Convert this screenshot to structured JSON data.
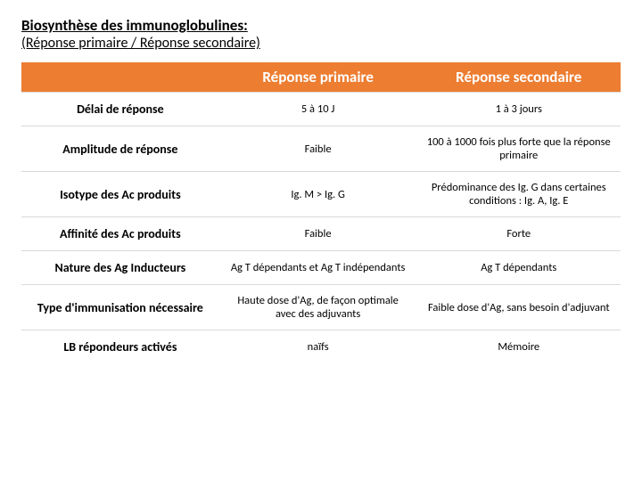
{
  "title": {
    "line1": "Biosynthèse des immunoglobulines:",
    "line2": "(Réponse primaire / Réponse secondaire)"
  },
  "table": {
    "header_bg": "#ed7d31",
    "header_fg": "#ffffff",
    "border_color": "#d9d9d9",
    "columns": [
      "",
      "Réponse primaire",
      "Réponse secondaire"
    ],
    "col_widths_pct": [
      33,
      33,
      34
    ],
    "header_fontsize": 17,
    "rowlabel_fontsize": 14,
    "cell_fontsize": 12.5,
    "rows": [
      {
        "label": "Délai de réponse",
        "primary": "5 à 10 J",
        "secondary": "1 à 3 jours"
      },
      {
        "label": "Amplitude de réponse",
        "primary": "Faible",
        "secondary": "100 à 1000 fois plus forte que la réponse primaire"
      },
      {
        "label": "Isotype des Ac produits",
        "primary": "Ig. M > Ig. G",
        "secondary": "Prédominance des Ig. G dans certaines conditions : Ig. A, Ig. E"
      },
      {
        "label": "Affinité des Ac produits",
        "primary": "Faible",
        "secondary": "Forte"
      },
      {
        "label": "Nature des Ag Inducteurs",
        "primary": "Ag T dépendants et Ag T indépendants",
        "secondary": "Ag T dépendants"
      },
      {
        "label": "Type d'immunisation nécessaire",
        "primary": "Haute dose d'Ag, de façon optimale avec des adjuvants",
        "secondary": "Faible dose d'Ag, sans besoin d'adjuvant"
      },
      {
        "label": "LB répondeurs activés",
        "primary": "naïfs",
        "secondary": "Mémoire"
      }
    ]
  }
}
